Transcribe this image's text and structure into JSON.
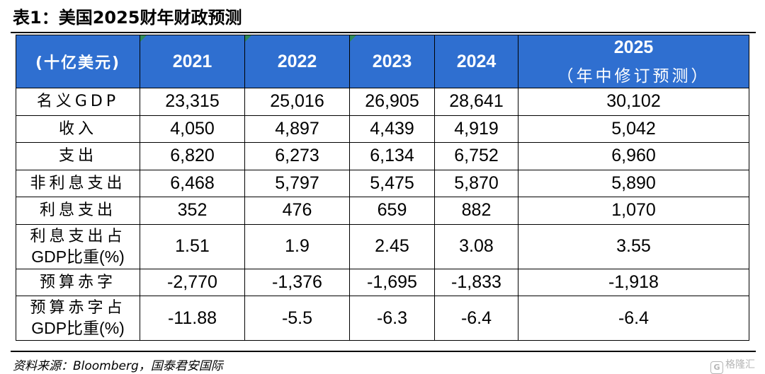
{
  "title": "表1：美国2025财年财政预测",
  "table": {
    "header": {
      "unit": "(十亿美元)",
      "years": [
        "2021",
        "2022",
        "2023",
        "2024"
      ],
      "forecast_year": "2025",
      "forecast_note": "（年中修订预测）"
    },
    "rows": [
      {
        "label": "名义GDP",
        "values": [
          "23,315",
          "25,016",
          "26,905",
          "28,641",
          "30,102"
        ]
      },
      {
        "label": "收入",
        "values": [
          "4,050",
          "4,897",
          "4,439",
          "4,919",
          "5,042"
        ]
      },
      {
        "label": "支出",
        "values": [
          "6,820",
          "6,273",
          "6,134",
          "6,752",
          "6,960"
        ]
      },
      {
        "label": "非利息支出",
        "values": [
          "6,468",
          "5,797",
          "5,475",
          "5,870",
          "5,890"
        ]
      },
      {
        "label": "利息支出",
        "values": [
          "352",
          "476",
          "659",
          "882",
          "1,070"
        ]
      },
      {
        "label_line1": "利息支出占",
        "label_line2": "GDP比重(%)",
        "values": [
          "1.51",
          "1.9",
          "2.45",
          "3.08",
          "3.55"
        ]
      },
      {
        "label": "预算赤字",
        "values": [
          "-2,770",
          "-1,376",
          "-1,695",
          "-1,833",
          "-1,918"
        ]
      },
      {
        "label_line1": "预算赤字占",
        "label_line2": "GDP比重(%)",
        "values": [
          "-11.88",
          "-5.5",
          "-6.3",
          "-6.4",
          "-6.4"
        ]
      }
    ]
  },
  "source": "资料来源：Bloomberg，国泰君安国际",
  "watermark": {
    "logo": "G",
    "text": "格隆汇"
  },
  "colors": {
    "header_bg": "#2f6fd0",
    "header_text": "#ffffff",
    "corner_marker": "#2e8b57"
  }
}
